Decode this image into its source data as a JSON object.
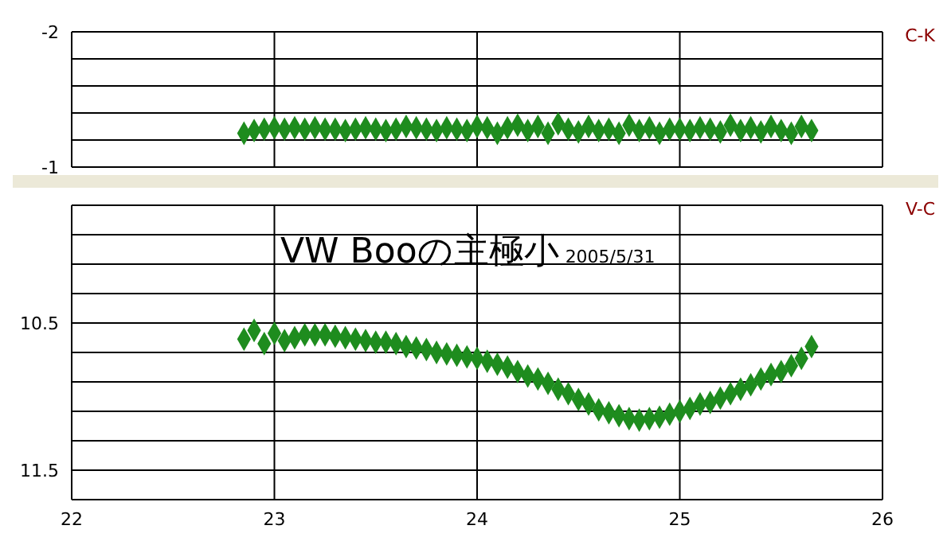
{
  "chart_data": [
    {
      "type": "scatter",
      "ylabel": "C-K",
      "x": [
        22.85,
        22.9,
        22.95,
        23,
        23.05,
        23.1,
        23.15,
        23.2,
        23.25,
        23.3,
        23.35,
        23.4,
        23.45,
        23.5,
        23.55,
        23.6,
        23.65,
        23.7,
        23.75,
        23.8,
        23.85,
        23.9,
        23.95,
        24,
        24.05,
        24.1,
        24.15,
        24.2,
        24.25,
        24.3,
        24.35,
        24.4,
        24.45,
        24.5,
        24.55,
        24.6,
        24.65,
        24.7,
        24.75,
        24.8,
        24.85,
        24.9,
        24.95,
        25,
        25.05,
        25.1,
        25.15,
        25.2,
        25.25,
        25.3,
        25.35,
        25.4,
        25.45,
        25.5,
        25.55,
        25.6,
        25.65
      ],
      "series": [
        {
          "color": "#1e8c1e",
          "values": [
            -1.25,
            -1.27,
            -1.28,
            -1.29,
            -1.28,
            -1.29,
            -1.28,
            -1.29,
            -1.28,
            -1.28,
            -1.27,
            -1.28,
            -1.29,
            -1.28,
            -1.27,
            -1.28,
            -1.3,
            -1.29,
            -1.28,
            -1.27,
            -1.29,
            -1.28,
            -1.27,
            -1.3,
            -1.29,
            -1.25,
            -1.29,
            -1.31,
            -1.27,
            -1.3,
            -1.25,
            -1.32,
            -1.28,
            -1.26,
            -1.3,
            -1.27,
            -1.28,
            -1.25,
            -1.31,
            -1.27,
            -1.29,
            -1.25,
            -1.28,
            -1.28,
            -1.27,
            -1.29,
            -1.28,
            -1.26,
            -1.31,
            -1.27,
            -1.29,
            -1.26,
            -1.3,
            -1.27,
            -1.25,
            -1.3,
            -1.27
          ]
        }
      ],
      "xlim": [
        22,
        26
      ],
      "xticks": [
        22,
        23,
        24,
        25,
        26
      ],
      "ylim": [
        -1,
        -2
      ],
      "yticks": [
        -2,
        {
          "value": -1.8,
          "label": null
        },
        {
          "value": -1.6,
          "label": null
        },
        {
          "value": -1.4,
          "label": null
        },
        {
          "value": -1.2,
          "label": null
        },
        -1
      ],
      "tick_labels": "y",
      "grid": true,
      "marker": "diamond",
      "legend": false
    },
    {
      "type": "scatter",
      "title": "VW Booの主極小",
      "subtitle": "2005/5/31",
      "ylabel": "V-C",
      "x": [
        22.85,
        22.9,
        22.95,
        23,
        23.05,
        23.1,
        23.15,
        23.2,
        23.25,
        23.3,
        23.35,
        23.4,
        23.45,
        23.5,
        23.55,
        23.6,
        23.65,
        23.7,
        23.75,
        23.8,
        23.85,
        23.9,
        23.95,
        24,
        24.05,
        24.1,
        24.15,
        24.2,
        24.25,
        24.3,
        24.35,
        24.4,
        24.45,
        24.5,
        24.55,
        24.6,
        24.65,
        24.7,
        24.75,
        24.8,
        24.85,
        24.9,
        24.95,
        25,
        25.05,
        25.1,
        25.15,
        25.2,
        25.25,
        25.3,
        25.35,
        25.4,
        25.45,
        25.5,
        25.55,
        25.6,
        25.65
      ],
      "series": [
        {
          "color": "#1e8c1e",
          "values": [
            10.61,
            10.55,
            10.64,
            10.57,
            10.62,
            10.6,
            10.58,
            10.58,
            10.58,
            10.59,
            10.6,
            10.61,
            10.62,
            10.63,
            10.63,
            10.64,
            10.66,
            10.67,
            10.68,
            10.7,
            10.71,
            10.72,
            10.73,
            10.74,
            10.76,
            10.78,
            10.8,
            10.83,
            10.86,
            10.88,
            10.91,
            10.95,
            10.98,
            11.02,
            11.05,
            11.09,
            11.11,
            11.13,
            11.15,
            11.16,
            11.15,
            11.14,
            11.12,
            11.1,
            11.08,
            11.05,
            11.04,
            11.01,
            10.98,
            10.95,
            10.92,
            10.88,
            10.85,
            10.83,
            10.79,
            10.74,
            10.66
          ]
        }
      ],
      "xlim": [
        22,
        26
      ],
      "xticks": [
        22,
        23,
        24,
        25,
        26
      ],
      "ylim": [
        11.7,
        9.7
      ],
      "yticks": [
        {
          "value": 9.7,
          "label": null
        },
        {
          "value": 9.9,
          "label": null
        },
        {
          "value": 10.1,
          "label": null
        },
        {
          "value": 10.3,
          "label": null
        },
        10.5,
        {
          "value": 10.7,
          "label": null
        },
        {
          "value": 10.9,
          "label": null
        },
        {
          "value": 11.1,
          "label": null
        },
        {
          "value": 11.3,
          "label": null
        },
        11.5,
        {
          "value": 11.7,
          "label": null
        }
      ],
      "grid": true,
      "marker": "diamond",
      "legend": false
    }
  ]
}
